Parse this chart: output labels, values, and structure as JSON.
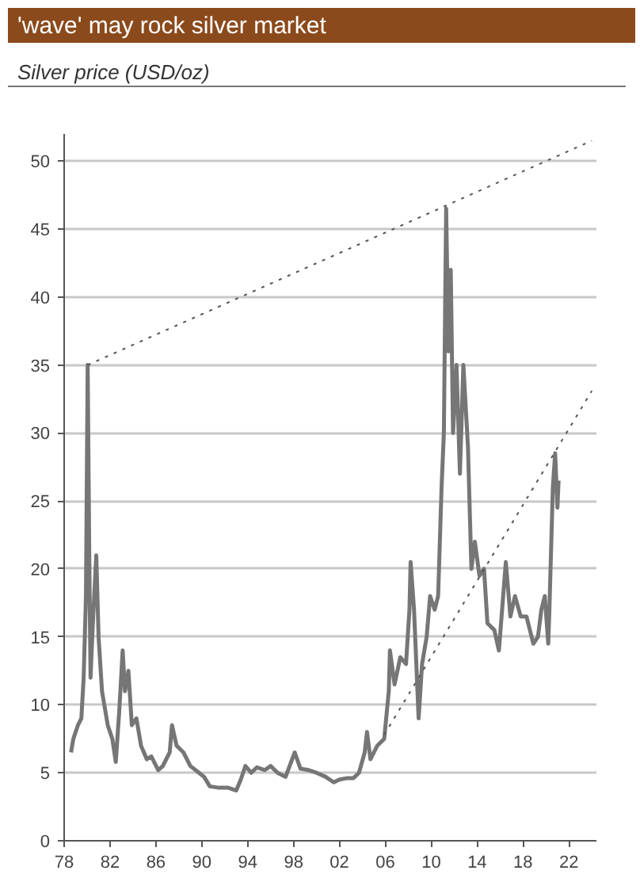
{
  "chart_data": {
    "type": "line",
    "title": "'wave' may rock silver market",
    "subtitle": "Silver price (USD/oz)",
    "xlim": [
      1978,
      2024.4
    ],
    "xticks": [
      {
        "value": 1978,
        "label": "78"
      },
      {
        "value": 1982,
        "label": "82"
      },
      {
        "value": 1986,
        "label": "86"
      },
      {
        "value": 1990,
        "label": "90"
      },
      {
        "value": 1994,
        "label": "94"
      },
      {
        "value": 1998,
        "label": "98"
      },
      {
        "value": 2002,
        "label": "02"
      },
      {
        "value": 2006,
        "label": "06"
      },
      {
        "value": 2010,
        "label": "10"
      },
      {
        "value": 2014,
        "label": "14"
      },
      {
        "value": 2018,
        "label": "18"
      },
      {
        "value": 2022,
        "label": "22"
      }
    ],
    "ylim": [
      0,
      52
    ],
    "yticks": [
      0,
      5,
      10,
      15,
      20,
      25,
      30,
      35,
      40,
      45,
      50
    ],
    "grid": "y",
    "series": [
      {
        "color": "#767676",
        "line_style": "solid",
        "x": [
          1978.6,
          1978.8,
          1979.2,
          1979.5,
          1979.7,
          1979.9,
          1980.05,
          1980.2,
          1980.3,
          1980.5,
          1980.8,
          1981.0,
          1981.3,
          1981.8,
          1982.2,
          1982.5,
          1982.8,
          1983.1,
          1983.3,
          1983.6,
          1983.9,
          1984.3,
          1984.7,
          1985.2,
          1985.6,
          1986.2,
          1986.6,
          1987.2,
          1987.4,
          1987.8,
          1988.4,
          1989.0,
          1989.6,
          1990.2,
          1990.7,
          1991.5,
          1992.3,
          1993.0,
          1993.4,
          1993.8,
          1994.3,
          1994.8,
          1995.5,
          1996.0,
          1996.6,
          1997.3,
          1998.1,
          1998.6,
          1999.3,
          2000.0,
          2000.8,
          2001.5,
          2002.0,
          2002.6,
          2003.2,
          2003.7,
          2004.2,
          2004.4,
          2004.7,
          2005.3,
          2005.9,
          2006.3,
          2006.4,
          2006.8,
          2007.3,
          2007.8,
          2008.1,
          2008.2,
          2008.5,
          2008.9,
          2009.2,
          2009.6,
          2009.9,
          2010.3,
          2010.6,
          2010.9,
          2011.1,
          2011.3,
          2011.5,
          2011.7,
          2011.9,
          2012.2,
          2012.5,
          2012.8,
          2013.2,
          2013.5,
          2013.8,
          2014.2,
          2014.6,
          2014.9,
          2015.5,
          2015.9,
          2016.5,
          2016.9,
          2017.3,
          2017.8,
          2018.3,
          2018.9,
          2019.3,
          2019.6,
          2019.9,
          2020.2,
          2020.3,
          2020.6,
          2020.8,
          2021.0,
          2021.1
        ],
        "values": [
          6.5,
          7.5,
          8.5,
          9,
          12,
          18,
          35,
          20,
          12,
          16,
          21,
          15,
          11,
          8.5,
          7.5,
          5.8,
          9.5,
          14,
          11,
          12.5,
          8.5,
          9,
          7,
          6,
          6.2,
          5.2,
          5.5,
          6.5,
          8.5,
          7,
          6.5,
          5.5,
          5.1,
          4.7,
          4.0,
          3.9,
          3.9,
          3.7,
          4.5,
          5.5,
          5.0,
          5.4,
          5.2,
          5.5,
          5.0,
          4.7,
          6.5,
          5.3,
          5.2,
          5.0,
          4.7,
          4.3,
          4.5,
          4.6,
          4.6,
          5.0,
          6.5,
          8.0,
          6.0,
          7.0,
          7.5,
          11,
          14,
          11.5,
          13.5,
          13.0,
          17,
          20.5,
          17,
          9.0,
          13,
          15,
          18,
          17,
          18,
          26,
          30,
          46.5,
          36,
          42,
          30,
          35,
          27,
          35,
          29,
          20,
          22,
          19.5,
          20,
          16,
          15.5,
          14,
          20.5,
          16.5,
          18,
          16.5,
          16.5,
          14.5,
          15,
          17,
          18,
          14.5,
          17,
          26,
          28.5,
          24.5,
          26.5
        ]
      },
      {
        "color": "#555555",
        "line_style": "dotted",
        "x": [
          1980.05,
          2024
        ],
        "values": [
          35,
          51.5
        ]
      },
      {
        "color": "#555555",
        "line_style": "dotted",
        "x": [
          2005.9,
          2024
        ],
        "values": [
          7.8,
          33.1
        ]
      }
    ]
  }
}
